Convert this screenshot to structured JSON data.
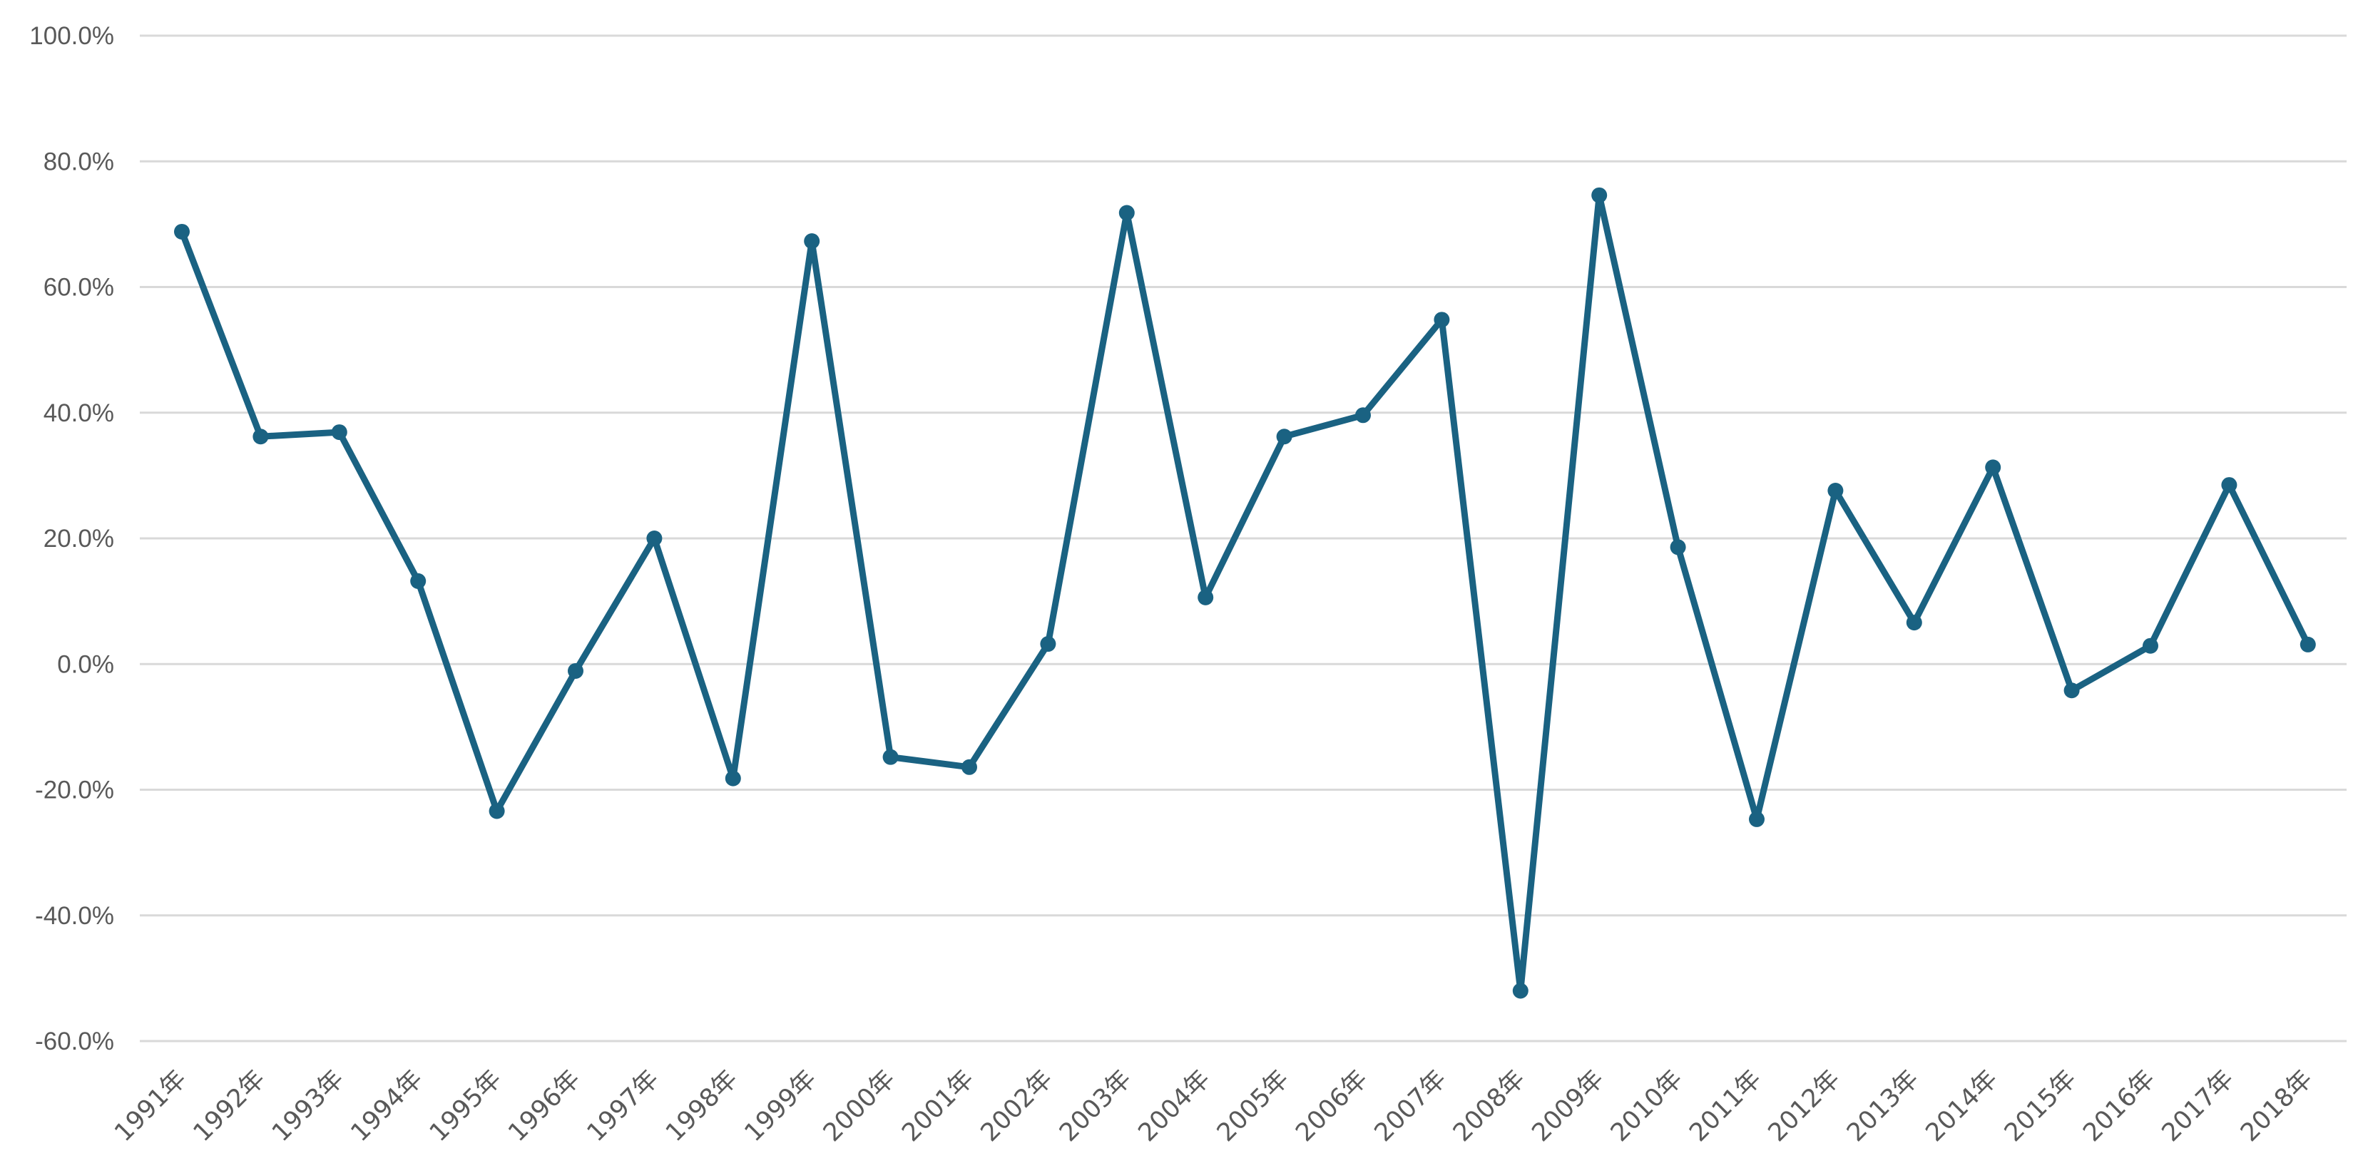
{
  "chart_data": {
    "type": "line",
    "title": "",
    "xlabel": "",
    "ylabel": "",
    "ylim": [
      -0.6,
      1.0
    ],
    "y_ticks": [
      -0.6,
      -0.4,
      -0.2,
      0.0,
      0.2,
      0.4,
      0.6,
      0.8,
      1.0
    ],
    "y_tick_labels": [
      "-60.0%",
      "-40.0%",
      "-20.0%",
      "0.0%",
      "20.0%",
      "40.0%",
      "60.0%",
      "80.0%",
      "100.0%"
    ],
    "grid": true,
    "legend": "none",
    "color": "#1a6282",
    "categories": [
      "1991年",
      "1992年",
      "1993年",
      "1994年",
      "1995年",
      "1996年",
      "1997年",
      "1998年",
      "1999年",
      "2000年",
      "2001年",
      "2002年",
      "2003年",
      "2004年",
      "2005年",
      "2006年",
      "2007年",
      "2008年",
      "2009年",
      "2010年",
      "2011年",
      "2012年",
      "2013年",
      "2014年",
      "2015年",
      "2016年",
      "2017年",
      "2018年"
    ],
    "series": [
      {
        "values": [
          0.688,
          0.362,
          0.369,
          0.132,
          -0.234,
          -0.011,
          0.2,
          -0.182,
          0.673,
          -0.148,
          -0.164,
          0.032,
          0.718,
          0.106,
          0.362,
          0.396,
          0.548,
          -0.52,
          0.746,
          0.186,
          -0.247,
          0.276,
          0.066,
          0.313,
          -0.042,
          0.029,
          0.285,
          0.031
        ]
      }
    ]
  }
}
